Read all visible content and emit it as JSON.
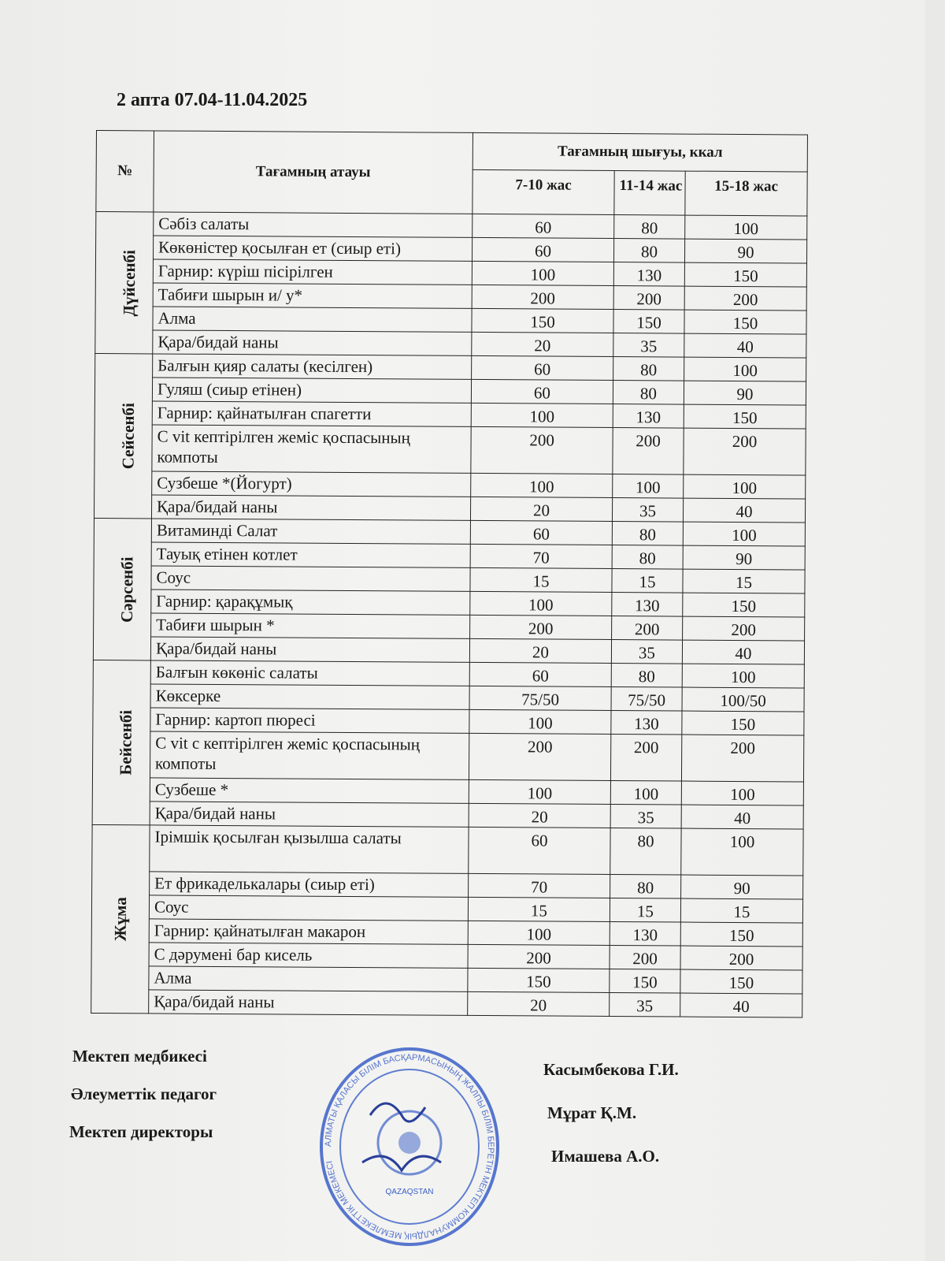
{
  "title": "2 апта 07.04-11.04.2025",
  "header": {
    "no": "№",
    "name": "Тағамның атауы",
    "yield": "Тағамның шығуы, ккал",
    "ages": [
      "7-10 жас",
      "11-14 жас",
      "15-18 жас"
    ]
  },
  "days": [
    {
      "day": "Дүйсенбі",
      "rows": [
        {
          "name": "Сәбіз салаты",
          "v": [
            "60",
            "80",
            "100"
          ]
        },
        {
          "name": "Көкөністер қосылған ет (сиыр еті)",
          "v": [
            "60",
            "80",
            "90"
          ]
        },
        {
          "name": "Гарнир: күріш пісірілген",
          "v": [
            "100",
            "130",
            "150"
          ]
        },
        {
          "name": "Табиғи шырын  и/ у*",
          "v": [
            "200",
            "200",
            "200"
          ]
        },
        {
          "name": "Алма",
          "v": [
            "150",
            "150",
            "150"
          ]
        },
        {
          "name": "Қара/бидай наны",
          "v": [
            "20",
            "35",
            "40"
          ]
        }
      ]
    },
    {
      "day": "Сейсенбі",
      "rows": [
        {
          "name": "Балғын қияр салаты (кесілген)",
          "v": [
            "60",
            "80",
            "100"
          ]
        },
        {
          "name": "Гуляш (сиыр етінен)",
          "v": [
            "60",
            "80",
            "90"
          ]
        },
        {
          "name": "Гарнир: қайнатылған спагетти",
          "v": [
            "100",
            "130",
            "150"
          ]
        },
        {
          "name": "С vit кептірілген жеміс қоспасының компоты",
          "v": [
            "200",
            "200",
            "200"
          ],
          "tall": true
        },
        {
          "name": "Сузбеше *(Йогурт)",
          "v": [
            "100",
            "100",
            "100"
          ]
        },
        {
          "name": "Қара/бидай наны",
          "v": [
            "20",
            "35",
            "40"
          ]
        }
      ]
    },
    {
      "day": "Сәрсенбі",
      "rows": [
        {
          "name": "Витаминді Салат",
          "v": [
            "60",
            "80",
            "100"
          ]
        },
        {
          "name": "Тауық етінен котлет",
          "v": [
            "70",
            "80",
            "90"
          ]
        },
        {
          "name": "Соус",
          "v": [
            "15",
            "15",
            "15"
          ]
        },
        {
          "name": "Гарнир: қарақұмық",
          "v": [
            "100",
            "130",
            "150"
          ]
        },
        {
          "name": "Табиғи шырын *",
          "v": [
            "200",
            "200",
            "200"
          ]
        },
        {
          "name": "Қара/бидай наны",
          "v": [
            "20",
            "35",
            "40"
          ]
        }
      ]
    },
    {
      "day": "Бейсенбі",
      "rows": [
        {
          "name": "Балғын көкөніс салаты",
          "v": [
            "60",
            "80",
            "100"
          ]
        },
        {
          "name": "Көксерке",
          "v": [
            "75/50",
            "75/50",
            "100/50"
          ]
        },
        {
          "name": "Гарнир: картоп пюресі",
          "v": [
            "100",
            "130",
            "150"
          ]
        },
        {
          "name": "С vit с кептірілген жеміс қоспасының компоты",
          "v": [
            "200",
            "200",
            "200"
          ],
          "tall": true
        },
        {
          "name": "Сузбеше *",
          "v": [
            "100",
            "100",
            "100"
          ]
        },
        {
          "name": "Қара/бидай наны",
          "v": [
            "20",
            "35",
            "40"
          ]
        }
      ]
    },
    {
      "day": "Жұма",
      "rows": [
        {
          "name": "Ірімшік қосылған қызылша салаты",
          "v": [
            "60",
            "80",
            "100"
          ],
          "tall": true
        },
        {
          "name": "Ет фрикаделькалары (сиыр еті)",
          "v": [
            "70",
            "80",
            "90"
          ]
        },
        {
          "name": "Соус",
          "v": [
            "15",
            "15",
            "15"
          ]
        },
        {
          "name": "Гарнир: қайнатылған макарон",
          "v": [
            "100",
            "130",
            "150"
          ]
        },
        {
          "name": "С дәрумені бар кисель",
          "v": [
            "200",
            "200",
            "200"
          ]
        },
        {
          "name": "Алма",
          "v": [
            "150",
            "150",
            "150"
          ]
        },
        {
          "name": "Қара/бидай наны",
          "v": [
            "20",
            "35",
            "40"
          ]
        }
      ]
    }
  ],
  "signatures": [
    {
      "role": "Мектеп медбикесі",
      "person": "Касымбекова Г.И."
    },
    {
      "role": "Әлеуметтік педагог",
      "person": "Мұрат Қ.М."
    },
    {
      "role": "Мектеп директоры",
      "person": "Имашева А.О."
    }
  ],
  "stamp": {
    "color": "#3a5fc8",
    "text": "АЛМАТЫ ҚАЛАСЫ БІЛІМ БАСҚАРМАСЫНЫҢ ЖАЛПЫ БІЛІМ БЕРЕТІН МЕКТЕП КОММУНАЛДЫҚ МЕМЛЕКЕТТІК МЕКЕМЕСІ",
    "inner": "QAZAQSTAN"
  }
}
